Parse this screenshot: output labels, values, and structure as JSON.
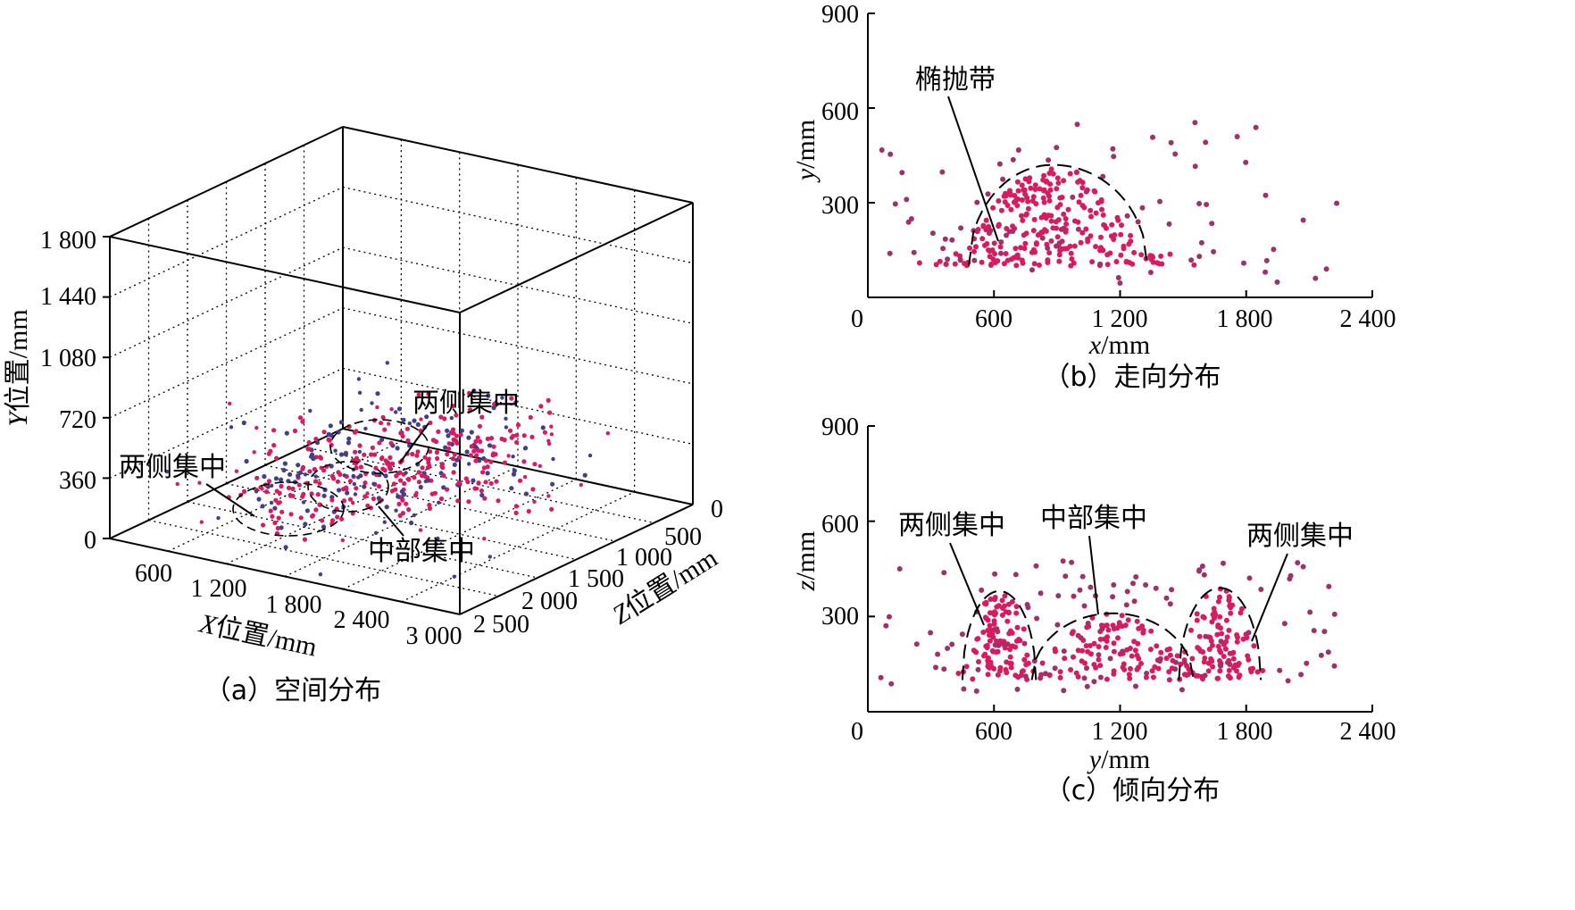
{
  "chart_data": [
    {
      "id": "a",
      "type": "scatter3d",
      "caption": "（a）空间分布",
      "xlabel_italic": "X",
      "xlabel_rest": "位置/mm",
      "ylabel_italic": "Y",
      "ylabel_rest": "位置/mm",
      "zlabel_italic": "Z",
      "zlabel_rest": "位置/mm",
      "xticks": [
        "600",
        "1 200",
        "1 800",
        "2 400",
        "3 000"
      ],
      "yticks": [
        "0",
        "360",
        "720",
        "1 080",
        "1 440",
        "1 800"
      ],
      "zticks": [
        "0",
        "500",
        "1 000",
        "1 500",
        "2 000",
        "2 500"
      ],
      "xlim": [
        0,
        3000
      ],
      "ylim": [
        0,
        1800
      ],
      "zlim": [
        0,
        2500
      ],
      "grid": true,
      "annotations": [
        "两侧集中",
        "两侧集中",
        "中部集中"
      ],
      "point_color": "#d81b60",
      "secondary_color": "#3f3f8f",
      "clusters": [
        {
          "x_center": 1100,
          "z_center": 1750,
          "y_center": 300
        },
        {
          "x_center": 1400,
          "z_center": 1200,
          "y_center": 300
        },
        {
          "x_center": 1700,
          "z_center": 700,
          "y_center": 300
        }
      ]
    },
    {
      "id": "b",
      "type": "scatter",
      "caption": "（b）走向分布",
      "xlabel_italic": "x",
      "xlabel_rest": "/mm",
      "ylabel_italic": "y",
      "ylabel_rest": "/mm",
      "xticks": [
        "0",
        "600",
        "1 200",
        "1 800",
        "2 400"
      ],
      "yticks": [
        "300",
        "600",
        "900"
      ],
      "xlim": [
        0,
        2400
      ],
      "ylim": [
        0,
        900
      ],
      "annotation": "椭抛带",
      "point_color": "#d81b60",
      "envelope": {
        "x_left": 480,
        "x_right": 1330,
        "peak_x": 880,
        "peak_y": 420,
        "base_y": 100
      }
    },
    {
      "id": "c",
      "type": "scatter",
      "caption": "（c）倾向分布",
      "xlabel_italic": "y",
      "xlabel_rest": "/mm",
      "ylabel_italic": "z",
      "ylabel_rest": "/mm",
      "xticks": [
        "0",
        "600",
        "1 200",
        "1 800",
        "2 400"
      ],
      "yticks": [
        "300",
        "600",
        "900"
      ],
      "xlim": [
        0,
        2400
      ],
      "ylim": [
        0,
        900
      ],
      "annotations": [
        "两侧集中",
        "中部集中",
        "两侧集中"
      ],
      "point_color": "#d81b60",
      "envelopes": [
        {
          "x_left": 450,
          "x_right": 800,
          "peak_y": 380
        },
        {
          "x_left": 780,
          "x_right": 1550,
          "peak_y": 310
        },
        {
          "x_left": 1480,
          "x_right": 1870,
          "peak_y": 390
        }
      ]
    }
  ]
}
